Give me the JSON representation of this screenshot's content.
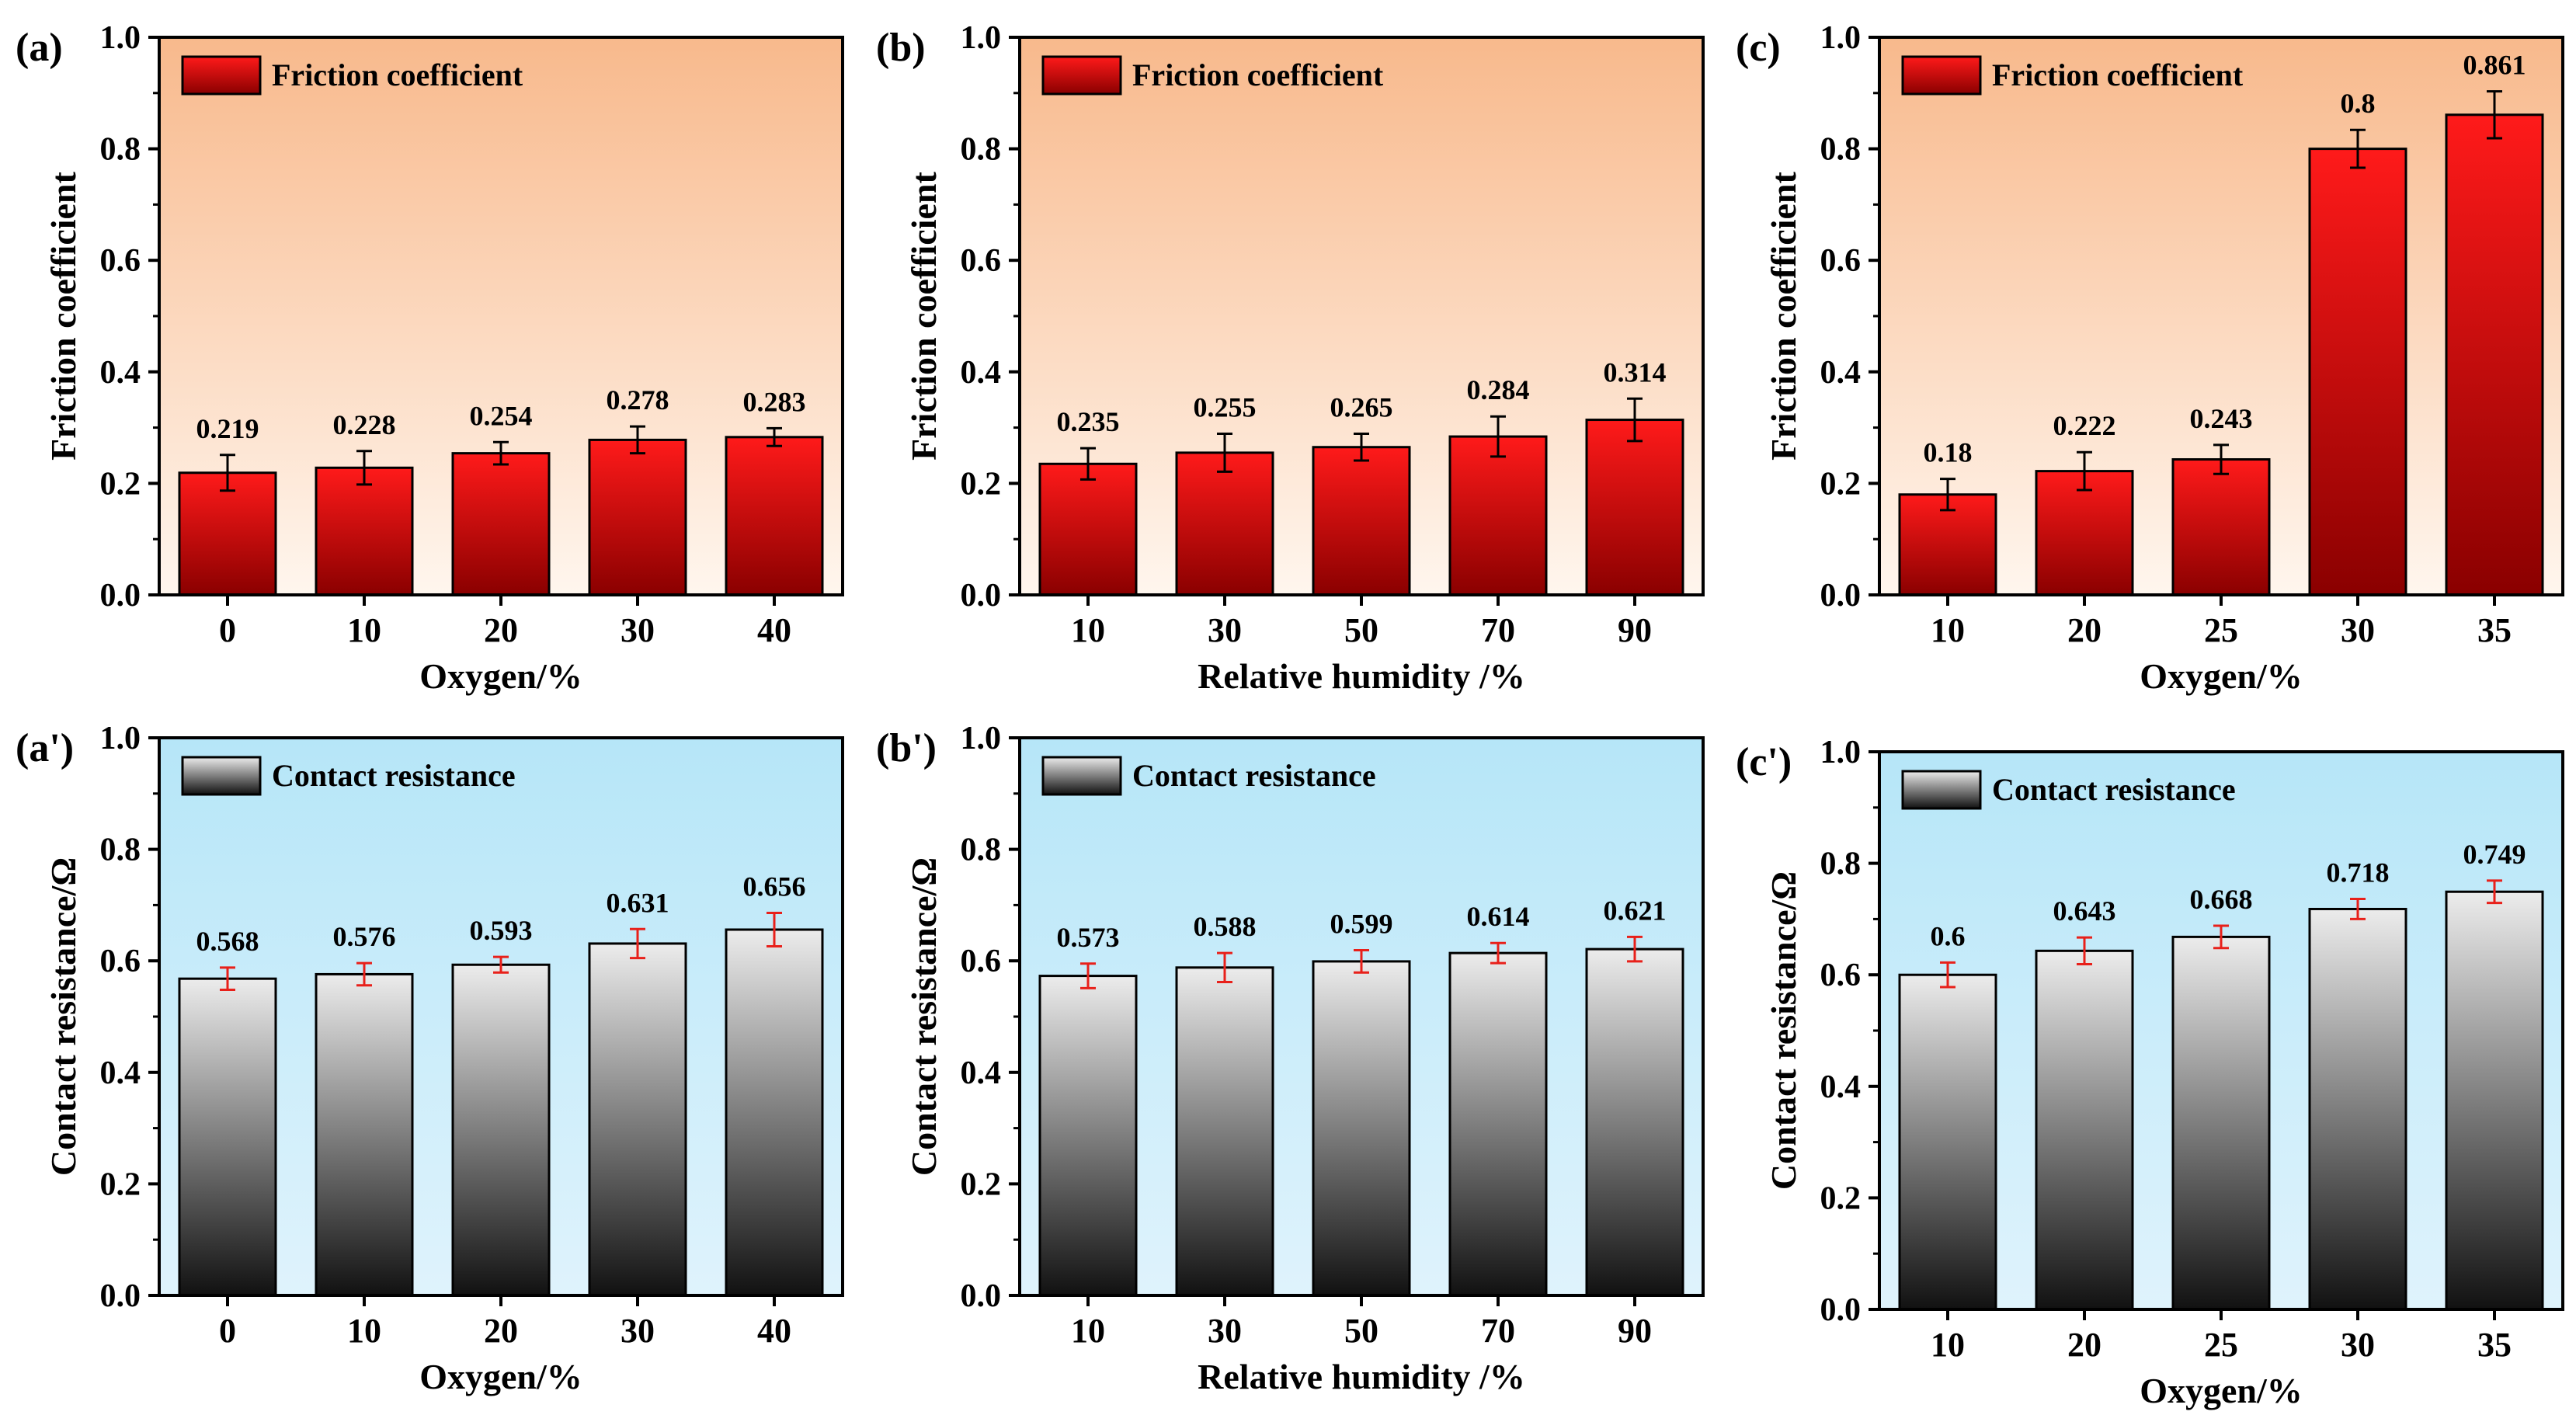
{
  "figure": {
    "name": "friction-and-contact-resistance-figure"
  },
  "colors": {
    "friction_bg_top": "#f8b98c",
    "friction_bg_bottom": "#fff6ee",
    "resistance_bg_top": "#b6e6f8",
    "resistance_bg_bottom": "#dff3fc",
    "friction_bar_top": "#ff1a1a",
    "friction_bar_bottom": "#8a0000",
    "resistance_bar_top": "#ececec",
    "resistance_bar_bottom": "#111111",
    "friction_error": "#000000",
    "resistance_error": "#e8201a"
  },
  "chart_data": [
    {
      "id": "a",
      "panel_label": "(a)",
      "type": "bar",
      "title": "",
      "legend": "Friction coefficient",
      "xlabel": "Oxygen/%",
      "ylabel": "Friction coefficient",
      "categories": [
        "0",
        "10",
        "20",
        "30",
        "40"
      ],
      "values": [
        0.219,
        0.228,
        0.254,
        0.278,
        0.283
      ],
      "value_labels": [
        "0.219",
        "0.228",
        "0.254",
        "0.278",
        "0.283"
      ],
      "errors": [
        0.032,
        0.03,
        0.02,
        0.024,
        0.016
      ],
      "ylim": [
        0,
        1.0
      ],
      "yticks": [
        "0.0",
        "0.2",
        "0.4",
        "0.6",
        "0.8",
        "1.0"
      ]
    },
    {
      "id": "b",
      "panel_label": "(b)",
      "type": "bar",
      "title": "",
      "legend": "Friction coefficient",
      "xlabel": "Relative humidity /%",
      "ylabel": "Friction coefficient",
      "categories": [
        "10",
        "30",
        "50",
        "70",
        "90"
      ],
      "values": [
        0.235,
        0.255,
        0.265,
        0.284,
        0.314
      ],
      "value_labels": [
        "0.235",
        "0.255",
        "0.265",
        "0.284",
        "0.314"
      ],
      "errors": [
        0.028,
        0.034,
        0.024,
        0.036,
        0.038
      ],
      "ylim": [
        0,
        1.0
      ],
      "yticks": [
        "0.0",
        "0.2",
        "0.4",
        "0.6",
        "0.8",
        "1.0"
      ]
    },
    {
      "id": "c",
      "panel_label": "(c)",
      "type": "bar",
      "title": "",
      "legend": "Friction coefficient",
      "xlabel": "Oxygen/%",
      "ylabel": "Friction coefficient",
      "categories": [
        "10",
        "20",
        "25",
        "30",
        "35"
      ],
      "values": [
        0.18,
        0.222,
        0.243,
        0.8,
        0.861
      ],
      "value_labels": [
        "0.18",
        "0.222",
        "0.243",
        "0.8",
        "0.861"
      ],
      "errors": [
        0.028,
        0.034,
        0.026,
        0.034,
        0.042
      ],
      "ylim": [
        0,
        1.0
      ],
      "yticks": [
        "0.0",
        "0.2",
        "0.4",
        "0.6",
        "0.8",
        "1.0"
      ]
    },
    {
      "id": "a2",
      "panel_label": "(a')",
      "type": "bar",
      "title": "",
      "legend": "Contact resistance",
      "xlabel": "Oxygen/%",
      "ylabel": "Contact resistance/Ω",
      "categories": [
        "0",
        "10",
        "20",
        "30",
        "40"
      ],
      "values": [
        0.568,
        0.576,
        0.593,
        0.631,
        0.656
      ],
      "value_labels": [
        "0.568",
        "0.576",
        "0.593",
        "0.631",
        "0.656"
      ],
      "errors": [
        0.02,
        0.02,
        0.014,
        0.026,
        0.03
      ],
      "ylim": [
        0,
        1.0
      ],
      "yticks": [
        "0.0",
        "0.2",
        "0.4",
        "0.6",
        "0.8",
        "1.0"
      ]
    },
    {
      "id": "b2",
      "panel_label": "(b')",
      "type": "bar",
      "title": "",
      "legend": "Contact resistance",
      "xlabel": "Relative humidity /%",
      "ylabel": "Contact resistance/Ω",
      "categories": [
        "10",
        "30",
        "50",
        "70",
        "90"
      ],
      "values": [
        0.573,
        0.588,
        0.599,
        0.614,
        0.621
      ],
      "value_labels": [
        "0.573",
        "0.588",
        "0.599",
        "0.614",
        "0.621"
      ],
      "errors": [
        0.022,
        0.026,
        0.02,
        0.018,
        0.022
      ],
      "ylim": [
        0,
        1.0
      ],
      "yticks": [
        "0.0",
        "0.2",
        "0.4",
        "0.6",
        "0.8",
        "1.0"
      ]
    },
    {
      "id": "c2",
      "panel_label": "(c')",
      "type": "bar",
      "title": "",
      "legend": "Contact resistance",
      "xlabel": "Oxygen/%",
      "ylabel": "Contact resistance/Ω",
      "categories": [
        "10",
        "20",
        "25",
        "30",
        "35"
      ],
      "values": [
        0.6,
        0.643,
        0.668,
        0.718,
        0.749
      ],
      "value_labels": [
        "0.6",
        "0.643",
        "0.668",
        "0.718",
        "0.749"
      ],
      "errors": [
        0.022,
        0.024,
        0.02,
        0.018,
        0.02
      ],
      "ylim": [
        0,
        1.0
      ],
      "yticks": [
        "0.0",
        "0.2",
        "0.4",
        "0.6",
        "0.8",
        "1.0"
      ]
    }
  ]
}
